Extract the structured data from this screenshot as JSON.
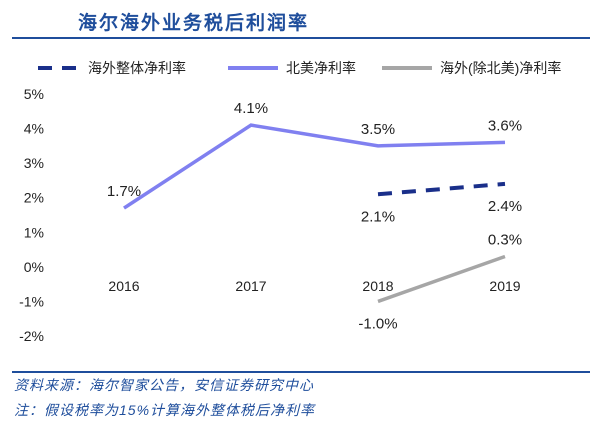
{
  "title": "海尔海外业务税后利润率",
  "footer": {
    "source": "资料来源：海尔智家公告，安信证券研究中心",
    "note": "注：假设税率为15%计算海外整体税后净利率"
  },
  "colors": {
    "title": "#1f4e9c",
    "overall": "#1a2f8a",
    "north_america": "#8080f0",
    "ex_na": "#a6a6a6"
  },
  "chart_data": {
    "type": "line",
    "categories": [
      "2016",
      "2017",
      "2018",
      "2019"
    ],
    "ylim": [
      -2,
      5
    ],
    "yticks": [
      "-2%",
      "-1%",
      "0%",
      "1%",
      "2%",
      "3%",
      "4%",
      "5%"
    ],
    "grid": false,
    "legend_position": "top",
    "series": [
      {
        "name": "海外整体净利率",
        "style": "dashed",
        "values": [
          null,
          null,
          2.1,
          2.4
        ],
        "labels": [
          null,
          null,
          "2.1%",
          "2.4%"
        ]
      },
      {
        "name": "北美净利率",
        "style": "solid",
        "values": [
          1.7,
          4.1,
          3.5,
          3.6
        ],
        "labels": [
          "1.7%",
          "4.1%",
          "3.5%",
          "3.6%"
        ]
      },
      {
        "name": "海外(除北美)净利率",
        "style": "solid",
        "values": [
          null,
          null,
          -1.0,
          0.3
        ],
        "labels": [
          null,
          null,
          "-1.0%",
          "0.3%"
        ]
      }
    ]
  }
}
